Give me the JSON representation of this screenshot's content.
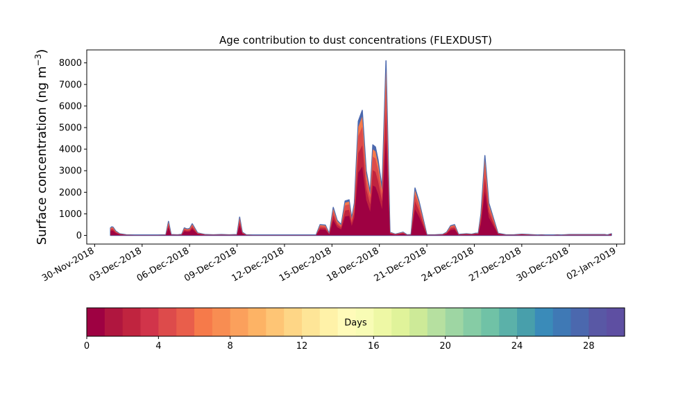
{
  "chart_data": {
    "type": "area",
    "stacked": true,
    "title": "Age contribution to dust concentrations (FLEXDUST)",
    "ylabel": "Surface concentration (ng m",
    "ylabel_sup": "−3",
    "ylabel_close": ")",
    "ylim": [
      -400,
      8600
    ],
    "yticks": [
      0,
      1000,
      2000,
      3000,
      4000,
      5000,
      6000,
      7000,
      8000
    ],
    "xlim": [
      "2018-11-29T12:00",
      "2019-01-02T12:00"
    ],
    "xtick_dates": [
      "2018-11-30",
      "2018-12-03",
      "2018-12-06",
      "2018-12-09",
      "2018-12-12",
      "2018-12-15",
      "2018-12-18",
      "2018-12-21",
      "2018-12-24",
      "2018-12-27",
      "2018-12-30",
      "2019-01-02"
    ],
    "xtick_labels": [
      "30-Nov-2018",
      "03-Dec-2018",
      "06-Dec-2018",
      "09-Dec-2018",
      "12-Dec-2018",
      "15-Dec-2018",
      "18-Dec-2018",
      "21-Dec-2018",
      "24-Dec-2018",
      "27-Dec-2018",
      "30-Dec-2018",
      "02-Jan-2019"
    ],
    "series_layers": [
      {
        "age_days": "0-1",
        "color": "#9e0142"
      },
      {
        "age_days": "1-2",
        "color": "#c0243f"
      },
      {
        "age_days": "2-5",
        "color": "#dd4b4b"
      },
      {
        "age_days": "5-8",
        "color": "#f67a4a"
      },
      {
        "age_days": "8-30",
        "color": "#4b68ae"
      }
    ],
    "x": [
      "2018-12-01T00:00",
      "2018-12-01T02:00",
      "2018-12-01T04:00",
      "2018-12-01T08:00",
      "2018-12-01T14:00",
      "2018-12-02T00:00",
      "2018-12-02T12:00",
      "2018-12-03T12:00",
      "2018-12-04T00:00",
      "2018-12-04T12:00",
      "2018-12-04T16:00",
      "2018-12-04T20:00",
      "2018-12-05T06:00",
      "2018-12-05T12:00",
      "2018-12-05T16:00",
      "2018-12-05T20:00",
      "2018-12-06T00:00",
      "2018-12-06T04:00",
      "2018-12-06T12:00",
      "2018-12-07T00:00",
      "2018-12-07T12:00",
      "2018-12-08T00:00",
      "2018-12-08T12:00",
      "2018-12-09T00:00",
      "2018-12-09T04:00",
      "2018-12-09T08:00",
      "2018-12-09T14:00",
      "2018-12-10T00:00",
      "2018-12-12T00:00",
      "2018-12-14T00:00",
      "2018-12-14T06:00",
      "2018-12-14T14:00",
      "2018-12-14T20:00",
      "2018-12-15T02:00",
      "2018-12-15T08:00",
      "2018-12-15T14:00",
      "2018-12-15T20:00",
      "2018-12-16T02:00",
      "2018-12-16T06:00",
      "2018-12-16T10:00",
      "2018-12-16T16:00",
      "2018-12-16T22:00",
      "2018-12-17T04:00",
      "2018-12-17T10:00",
      "2018-12-17T14:00",
      "2018-12-17T18:00",
      "2018-12-17T22:00",
      "2018-12-18T04:00",
      "2018-12-18T10:00",
      "2018-12-18T16:00",
      "2018-12-19T00:00",
      "2018-12-19T12:00",
      "2018-12-19T18:00",
      "2018-12-20T00:00",
      "2018-12-20T06:00",
      "2018-12-20T12:00",
      "2018-12-21T00:00",
      "2018-12-21T12:00",
      "2018-12-22T00:00",
      "2018-12-22T06:00",
      "2018-12-22T12:00",
      "2018-12-22T18:00",
      "2018-12-23T00:00",
      "2018-12-23T12:00",
      "2018-12-23T20:00",
      "2018-12-24T02:00",
      "2018-12-24T06:00",
      "2018-12-24T10:00",
      "2018-12-24T16:00",
      "2018-12-24T22:00",
      "2018-12-25T12:00",
      "2018-12-26T00:00",
      "2018-12-26T12:00",
      "2018-12-27T00:00",
      "2018-12-28T00:00",
      "2018-12-28T06:00",
      "2018-12-28T12:00",
      "2018-12-29T00:00",
      "2018-12-29T06:00",
      "2018-12-29T12:00",
      "2018-12-30T00:00",
      "2018-12-30T12:00",
      "2018-12-31T00:00",
      "2018-12-31T12:00",
      "2019-01-01T00:00",
      "2019-01-01T06:00",
      "2019-01-01T10:00",
      "2019-01-01T16:00"
    ],
    "totals": [
      350,
      400,
      380,
      200,
      80,
      30,
      20,
      20,
      20,
      30,
      650,
      40,
      30,
      50,
      350,
      300,
      320,
      540,
      120,
      40,
      30,
      40,
      30,
      40,
      850,
      150,
      30,
      20,
      20,
      20,
      500,
      480,
      80,
      1300,
      700,
      500,
      1600,
      1650,
      800,
      1500,
      5300,
      5800,
      3000,
      2000,
      4200,
      4100,
      3500,
      2200,
      8100,
      150,
      60,
      150,
      30,
      40,
      2200,
      1600,
      30,
      30,
      50,
      150,
      450,
      500,
      50,
      80,
      60,
      100,
      100,
      1000,
      3700,
      1500,
      100,
      30,
      30,
      60,
      20,
      30,
      20,
      20,
      30,
      20,
      40,
      40,
      40,
      40,
      40,
      40,
      20,
      80
    ]
  },
  "colorbar": {
    "label": "Days",
    "min": 0,
    "max": 30,
    "ticks": [
      0,
      4,
      8,
      12,
      16,
      20,
      24,
      28
    ],
    "colors": [
      "#9e0142",
      "#b0163f",
      "#c0243f",
      "#d1344a",
      "#dd4b4b",
      "#e95e4b",
      "#f67a4a",
      "#f88d52",
      "#fba05c",
      "#fdb365",
      "#fec575",
      "#fed686",
      "#fee597",
      "#fff2a8",
      "#fffbb9",
      "#f8fcb5",
      "#eef8a5",
      "#e0f39a",
      "#cdea98",
      "#b6e0a0",
      "#9ed6a3",
      "#86cca5",
      "#70c2a6",
      "#5bb1a9",
      "#489fab",
      "#3a8bb9",
      "#3f79b5",
      "#4b68ae",
      "#5958a5",
      "#5e4fa2"
    ]
  }
}
